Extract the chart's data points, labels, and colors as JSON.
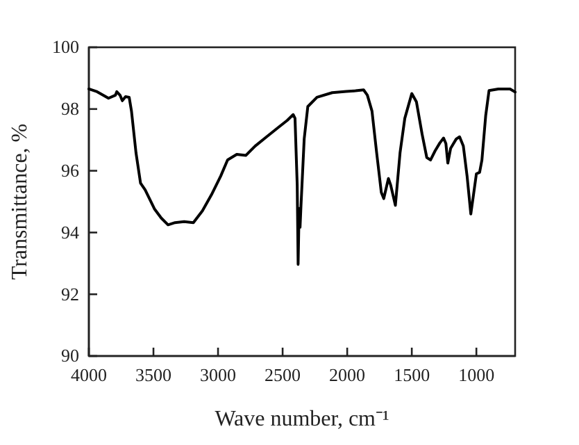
{
  "chart_data": {
    "type": "line",
    "xlabel": "Wave number, cm⁻¹",
    "ylabel": "Transmittance, %",
    "xlim": [
      4000,
      700
    ],
    "xticks": [
      4000,
      3500,
      3000,
      2500,
      2000,
      1500,
      1000
    ],
    "ylim": [
      90,
      100
    ],
    "yticks": [
      90,
      92,
      94,
      96,
      98,
      100
    ],
    "grid": false,
    "marker": "none",
    "line_style": "solid",
    "series": [
      {
        "color": "#000000",
        "x": [
          4000,
          3936,
          3848,
          3794,
          3784,
          3759,
          3741,
          3716,
          3688,
          3670,
          3635,
          3600,
          3564,
          3493,
          3440,
          3387,
          3333,
          3262,
          3191,
          3121,
          3050,
          2979,
          2926,
          2855,
          2784,
          2713,
          2624,
          2535,
          2465,
          2418,
          2404,
          2387,
          2380,
          2372,
          2365,
          2358,
          2333,
          2305,
          2234,
          2116,
          2007,
          1935,
          1873,
          1844,
          1808,
          1772,
          1736,
          1717,
          1681,
          1663,
          1627,
          1591,
          1554,
          1500,
          1464,
          1420,
          1384,
          1355,
          1319,
          1283,
          1254,
          1236,
          1221,
          1199,
          1156,
          1130,
          1101,
          1072,
          1043,
          1022,
          1000,
          975,
          957,
          928,
          902,
          830,
          739,
          700
        ],
        "values": [
          98.65,
          98.56,
          98.35,
          98.45,
          98.56,
          98.45,
          98.27,
          98.4,
          98.38,
          97.93,
          96.58,
          95.6,
          95.38,
          94.77,
          94.47,
          94.25,
          94.32,
          94.35,
          94.32,
          94.7,
          95.23,
          95.83,
          96.35,
          96.53,
          96.5,
          96.8,
          97.1,
          97.4,
          97.63,
          97.82,
          97.7,
          95.53,
          92.97,
          94.78,
          94.17,
          94.85,
          97.03,
          98.08,
          98.38,
          98.53,
          98.57,
          98.59,
          98.62,
          98.45,
          97.93,
          96.58,
          95.3,
          95.1,
          95.75,
          95.53,
          94.88,
          96.58,
          97.7,
          98.5,
          98.23,
          97.18,
          96.43,
          96.35,
          96.65,
          96.9,
          97.06,
          96.88,
          96.25,
          96.73,
          97.03,
          97.1,
          96.8,
          95.83,
          94.6,
          95.23,
          95.9,
          95.95,
          96.35,
          97.78,
          98.6,
          98.65,
          98.65,
          98.55
        ]
      }
    ]
  }
}
